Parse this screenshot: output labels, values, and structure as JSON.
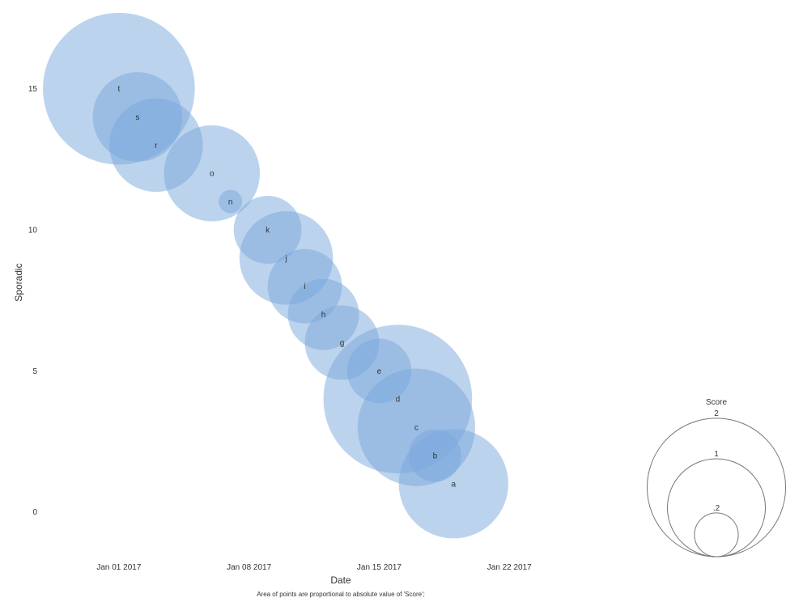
{
  "chart_data": {
    "type": "scatter",
    "xlabel": "Date",
    "ylabel": "Sporadic",
    "x_ticks": [
      "Jan 01 2017",
      "Jan 08 2017",
      "Jan 15 2017",
      "Jan 22 2017"
    ],
    "x_tick_dates": [
      "2017-01-01",
      "2017-01-08",
      "2017-01-15",
      "2017-01-22"
    ],
    "xlim": [
      "2016-12-28",
      "2017-01-29"
    ],
    "y_ticks": [
      "0",
      "5",
      "10",
      "15"
    ],
    "ylim": [
      -1.5,
      18
    ],
    "grid": false,
    "point_color": "#7aa8dc",
    "points": [
      {
        "label": "a",
        "date": "2017-01-19",
        "y": 1,
        "size": 1.3
      },
      {
        "label": "b",
        "date": "2017-01-18",
        "y": 2,
        "size": 0.3
      },
      {
        "label": "c",
        "date": "2017-01-17",
        "y": 3,
        "size": 1.5
      },
      {
        "label": "d",
        "date": "2017-01-16",
        "y": 4,
        "size": 2.4
      },
      {
        "label": "e",
        "date": "2017-01-15",
        "y": 5,
        "size": 0.45
      },
      {
        "label": "g",
        "date": "2017-01-13",
        "y": 6,
        "size": 0.6
      },
      {
        "label": "h",
        "date": "2017-01-12",
        "y": 7,
        "size": 0.55
      },
      {
        "label": "i",
        "date": "2017-01-11",
        "y": 8,
        "size": 0.6
      },
      {
        "label": "j",
        "date": "2017-01-10",
        "y": 9,
        "size": 0.95
      },
      {
        "label": "k",
        "date": "2017-01-09",
        "y": 10,
        "size": 0.5
      },
      {
        "label": "n",
        "date": "2017-01-07",
        "y": 11,
        "size": 0.06
      },
      {
        "label": "o",
        "date": "2017-01-06",
        "y": 12,
        "size": 1.0
      },
      {
        "label": "r",
        "date": "2017-01-03",
        "y": 13,
        "size": 0.95
      },
      {
        "label": "s",
        "date": "2017-01-02",
        "y": 14,
        "size": 0.87
      },
      {
        "label": "t",
        "date": "2017-01-01",
        "y": 15,
        "size": 2.5
      }
    ],
    "legend": {
      "title": "Score",
      "placement": "bottom-right",
      "entries": [
        {
          "label": "2",
          "value": 2
        },
        {
          "label": "1",
          "value": 1
        },
        {
          "label": ".2",
          "value": 0.2
        }
      ]
    },
    "footnote": "Area of points are proportional to absolute value of 'Score';"
  }
}
